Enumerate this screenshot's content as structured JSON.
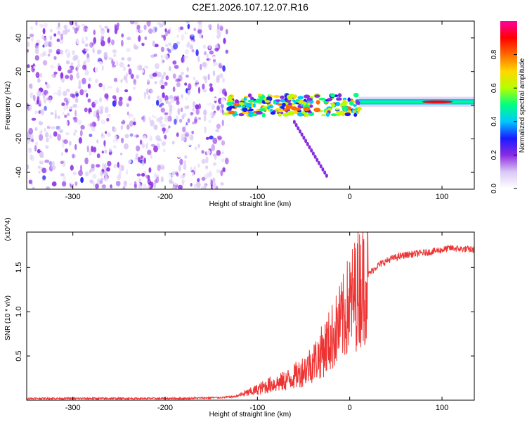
{
  "title": "C2E1.2026.107.12.07.R16",
  "chart_data": [
    {
      "type": "heatmap",
      "xlabel": "Height of straight line (km)",
      "ylabel": "Frequency (Hz)",
      "xlim": [
        -350,
        135
      ],
      "ylim": [
        -50,
        50
      ],
      "xticks": [
        -300,
        -200,
        -100,
        0,
        100
      ],
      "yticks": [
        -40,
        -20,
        0,
        20,
        40
      ],
      "colorbar": {
        "label": "Normalized spectral amplitude",
        "range": [
          0,
          1
        ],
        "ticks": [
          "0.0",
          "0.2",
          "0.4",
          "0.6",
          "0.8"
        ],
        "colors": [
          "#ffffff",
          "#d9c8f5",
          "#8a2be2",
          "#1a1aff",
          "#00c8ff",
          "#00ff80",
          "#b4ff00",
          "#ffd700",
          "#ff6a00",
          "#ff0000",
          "#ff00a0"
        ]
      },
      "regions": [
        {
          "name": "noise",
          "x_range": [
            -350,
            -133
          ],
          "freq_range": [
            -50,
            50
          ],
          "amplitude": "0.0-0.25"
        },
        {
          "name": "signal-noisy",
          "x_range": [
            -133,
            10
          ],
          "center_freq": 0,
          "amplitude": "0.2-0.9"
        },
        {
          "name": "signal-stable",
          "x_range": [
            10,
            135
          ],
          "center_freq": 2,
          "amplitude": "0.4-1.0"
        },
        {
          "name": "branch",
          "x_range": [
            -60,
            -25
          ],
          "freq_range": [
            -42,
            -10
          ],
          "amplitude": "0.2-0.3"
        }
      ]
    },
    {
      "type": "line",
      "xlabel": "Height of straight line (km)",
      "ylabel": "SNR (10 * v/v)",
      "multiplier": "(x10^4)",
      "xlim": [
        -350,
        135
      ],
      "ylim": [
        0,
        1.9
      ],
      "xticks": [
        -300,
        -200,
        -100,
        0,
        100
      ],
      "yticks": [
        "0.5",
        "1.0",
        "1.5"
      ],
      "color": "#ee3333",
      "series": [
        {
          "name": "SNR",
          "x": [
            -350,
            -250,
            -180,
            -140,
            -125,
            -115,
            -105,
            -95,
            -85,
            -75,
            -65,
            -55,
            -45,
            -35,
            -25,
            -15,
            -8,
            -2,
            5,
            10,
            20,
            30,
            45,
            60,
            75,
            90,
            100,
            110,
            120,
            135
          ],
          "y": [
            0.02,
            0.02,
            0.02,
            0.03,
            0.04,
            0.07,
            0.1,
            0.14,
            0.18,
            0.2,
            0.24,
            0.3,
            0.38,
            0.48,
            0.62,
            0.78,
            0.9,
            1.05,
            1.18,
            1.28,
            1.42,
            1.52,
            1.6,
            1.64,
            1.66,
            1.68,
            1.7,
            1.72,
            1.71,
            1.7
          ]
        }
      ]
    }
  ]
}
